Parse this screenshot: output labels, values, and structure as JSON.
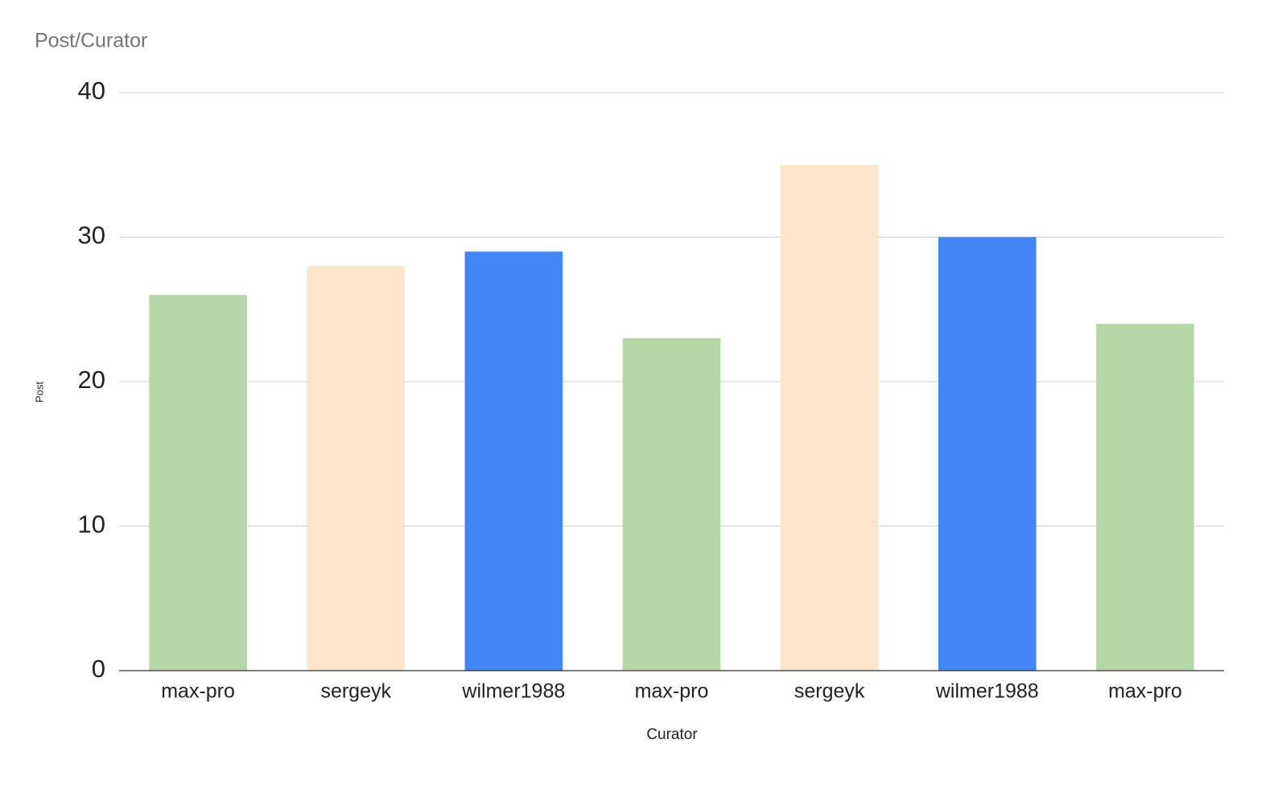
{
  "chart_data": {
    "type": "bar",
    "title": "Post/Curator",
    "x_label": "Curator",
    "y_label": "Post",
    "categories": [
      "max-pro",
      "sergeyk",
      "wilmer1988",
      "max-pro",
      "sergeyk",
      "wilmer1988",
      "max-pro"
    ],
    "values": [
      26,
      28,
      29,
      23,
      35,
      30,
      24
    ],
    "colors": [
      "#b6d7a8",
      "#fce5cd",
      "#4285f4",
      "#b6d7a8",
      "#fce5cd",
      "#4285f4",
      "#b6d7a8"
    ],
    "ylim": [
      0,
      40
    ],
    "yticks": [
      0,
      10,
      20,
      30,
      40
    ],
    "grid": true
  }
}
